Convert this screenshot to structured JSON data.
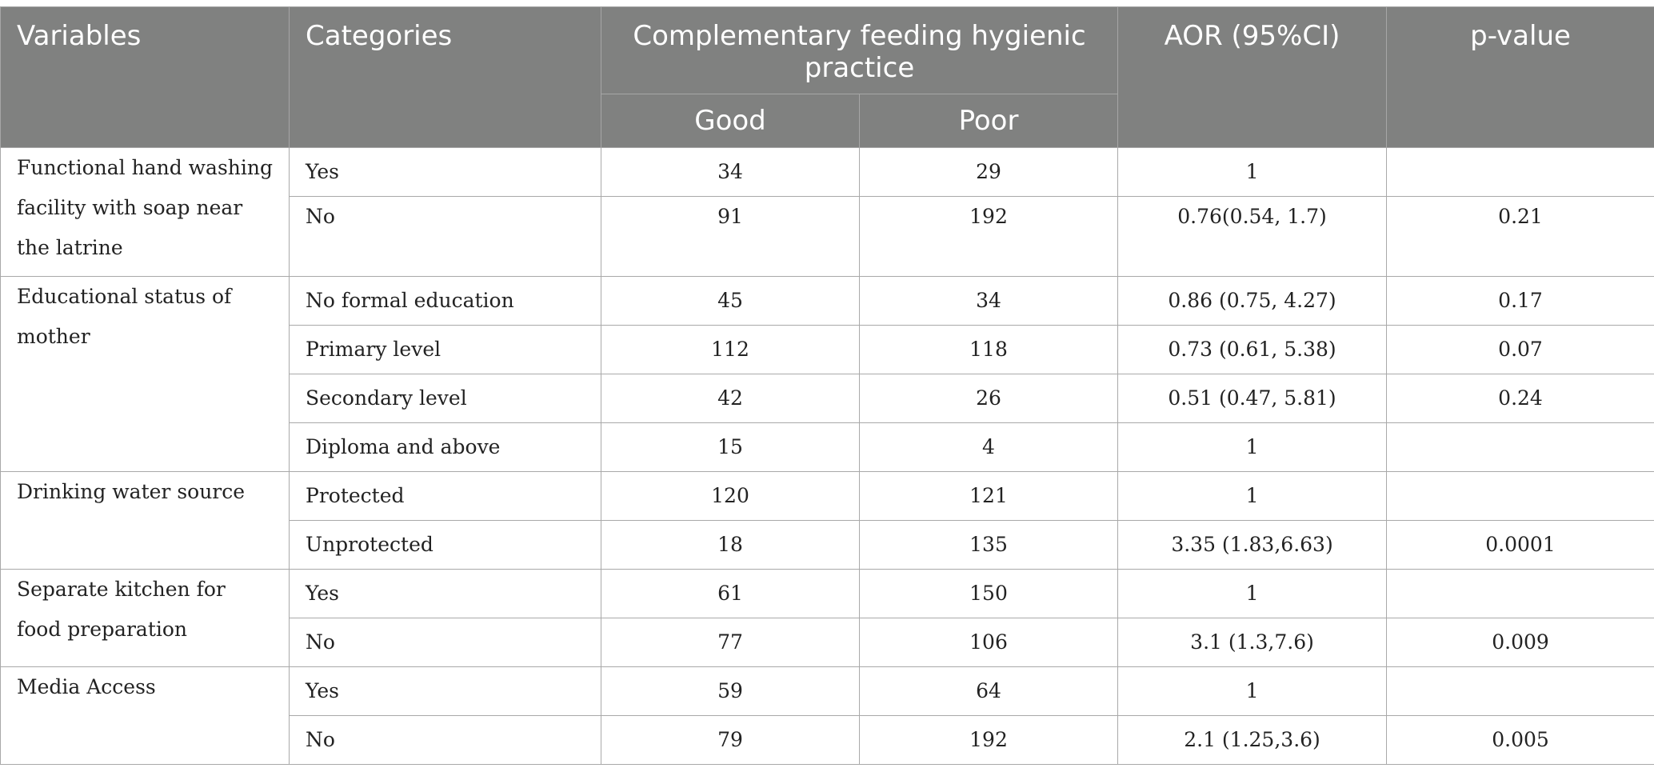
{
  "table": {
    "headers": {
      "variables": "Variables",
      "categories": "Categories",
      "group": "Complementary feeding hygienic practice",
      "good": "Good",
      "poor": "Poor",
      "aor": "AOR (95%CI)",
      "pvalue": "p-value"
    },
    "groups": [
      {
        "variable": "Functional hand washing facility with soap near the latrine",
        "rows": [
          {
            "category": "Yes",
            "good": "34",
            "poor": "29",
            "aor": "1",
            "p": ""
          },
          {
            "category": "No",
            "good": "91",
            "poor": "192",
            "aor": "0.76(0.54, 1.7)",
            "p": "0.21"
          }
        ]
      },
      {
        "variable": "Educational status of mother",
        "rows": [
          {
            "category": "No formal education",
            "good": "45",
            "poor": "34",
            "aor": "0.86 (0.75, 4.27)",
            "p": "0.17"
          },
          {
            "category": "Primary level",
            "good": "112",
            "poor": "118",
            "aor": "0.73 (0.61, 5.38)",
            "p": "0.07"
          },
          {
            "category": "Secondary level",
            "good": "42",
            "poor": "26",
            "aor": "0.51 (0.47, 5.81)",
            "p": "0.24"
          },
          {
            "category": "Diploma and above",
            "good": "15",
            "poor": "4",
            "aor": "1",
            "p": ""
          }
        ]
      },
      {
        "variable": "Drinking water source",
        "rows": [
          {
            "category": "Protected",
            "good": "120",
            "poor": "121",
            "aor": "1",
            "p": ""
          },
          {
            "category": "Unprotected",
            "good": "18",
            "poor": "135",
            "aor": "3.35 (1.83,6.63)",
            "p": "0.0001"
          }
        ]
      },
      {
        "variable": "Separate kitchen for food preparation",
        "rows": [
          {
            "category": "Yes",
            "good": "61",
            "poor": "150",
            "aor": "1",
            "p": ""
          },
          {
            "category": "No",
            "good": "77",
            "poor": "106",
            "aor": "3.1 (1.3,7.6)",
            "p": "0.009"
          }
        ]
      },
      {
        "variable": "Media Access",
        "rows": [
          {
            "category": "Yes",
            "good": "59",
            "poor": "64",
            "aor": "1",
            "p": ""
          },
          {
            "category": "No",
            "good": "79",
            "poor": "192",
            "aor": "2.1 (1.25,3.6)",
            "p": "0.005"
          }
        ]
      }
    ]
  }
}
